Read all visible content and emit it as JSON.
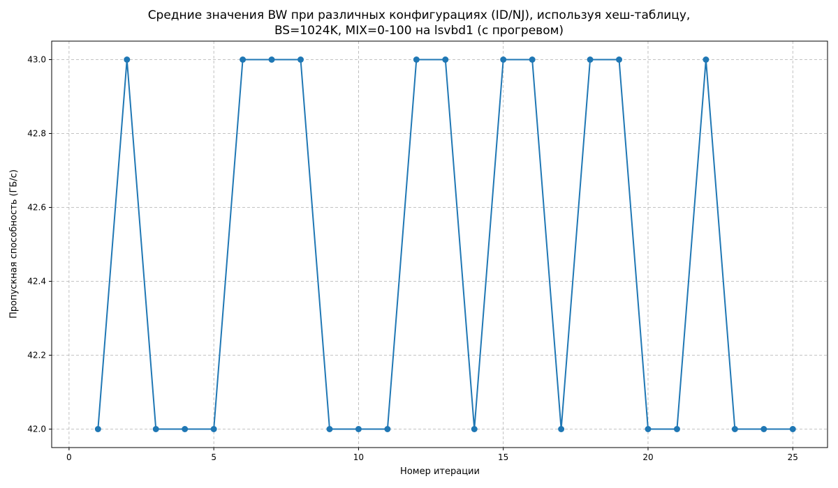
{
  "chart_data": {
    "type": "line",
    "title_lines": [
      "Средние значения BW при различных конфигурациях (ID/NJ), используя хеш-таблицу,",
      "BS=1024K, MIX=0-100 на lsvbd1 (с прогревом)"
    ],
    "xlabel": "Номер итерации",
    "ylabel": "Пропускная способность (ГБ/с)",
    "xlim": [
      -0.6,
      26.2
    ],
    "ylim": [
      41.95,
      43.05
    ],
    "xticks": [
      0,
      5,
      10,
      15,
      20,
      25
    ],
    "yticks": [
      42.0,
      42.2,
      42.4,
      42.6,
      42.8,
      43.0
    ],
    "grid": true,
    "series": [
      {
        "name": "BW",
        "color": "#1f77b4",
        "x": [
          1,
          2,
          3,
          4,
          5,
          6,
          7,
          8,
          9,
          10,
          11,
          12,
          13,
          14,
          15,
          16,
          17,
          18,
          19,
          20,
          21,
          22,
          23,
          24,
          25
        ],
        "values": [
          42,
          43,
          42,
          42,
          42,
          43,
          43,
          43,
          42,
          42,
          42,
          43,
          43,
          42,
          43,
          43,
          42,
          43,
          43,
          42,
          42,
          43,
          42,
          42,
          42
        ]
      }
    ]
  }
}
